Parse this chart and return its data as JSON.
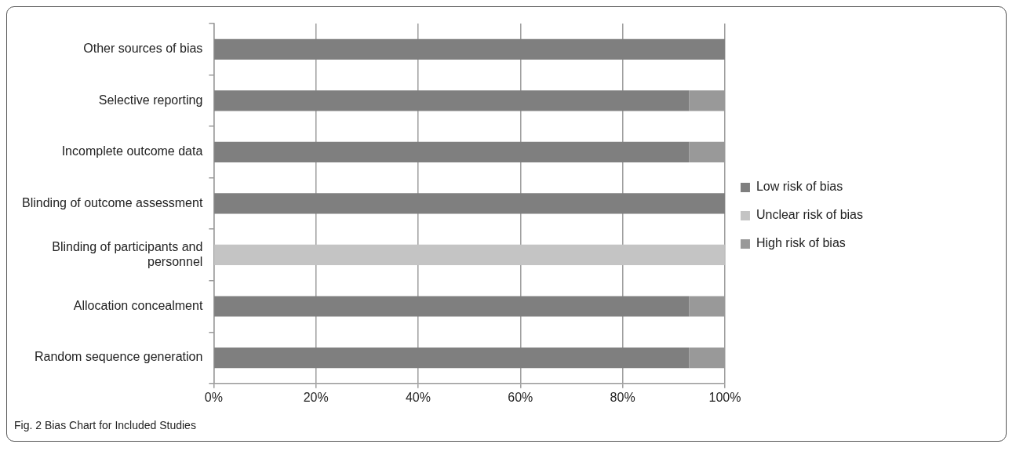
{
  "chart_data": {
    "type": "bar",
    "orientation": "horizontal",
    "stacked": true,
    "categories": [
      "Other sources of bias",
      "Selective reporting",
      "Incomplete outcome data",
      "Blinding of outcome assessment",
      "Blinding of participants and personnel",
      "Allocation concealment",
      "Random sequence generation"
    ],
    "series": [
      {
        "name": "Low risk of bias",
        "color": "#7f7f7f",
        "values": [
          100,
          93,
          93,
          100,
          0,
          93,
          93
        ]
      },
      {
        "name": "Unclear risk of bias",
        "color": "#c4c4c4",
        "values": [
          0,
          0,
          0,
          0,
          100,
          0,
          0
        ]
      },
      {
        "name": "High risk of bias",
        "color": "#999999",
        "values": [
          0,
          7,
          7,
          0,
          0,
          7,
          7
        ]
      }
    ],
    "xlim": [
      0,
      100
    ],
    "xticks": [
      {
        "value": 0,
        "label": "0%"
      },
      {
        "value": 20,
        "label": "20%"
      },
      {
        "value": 40,
        "label": "40%"
      },
      {
        "value": 60,
        "label": "60%"
      },
      {
        "value": 80,
        "label": "80%"
      },
      {
        "value": 100,
        "label": "100%"
      }
    ],
    "grid": "x",
    "legend": "right",
    "annotations": [
      "Fig. 2 Bias Chart for Included Studies"
    ]
  }
}
